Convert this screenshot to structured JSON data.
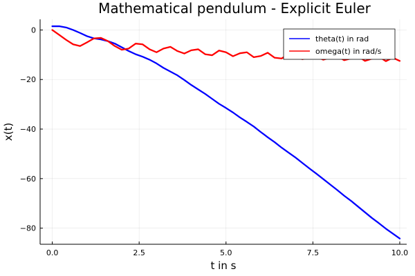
{
  "chart_data": {
    "type": "line",
    "title": "Mathematical pendulum - Explicit Euler",
    "xlabel": "t in s",
    "ylabel": "x(t)",
    "xlim": [
      -0.35,
      10.2
    ],
    "ylim": [
      -86.5,
      4.3
    ],
    "xticks": [
      0,
      2.5,
      5,
      7.5,
      10
    ],
    "xtick_labels": [
      "0.0",
      "2.5",
      "5.0",
      "7.5",
      "10.0"
    ],
    "yticks": [
      0,
      -20,
      -40,
      -60,
      -80
    ],
    "ytick_labels": [
      "0",
      "−20",
      "−40",
      "−60",
      "−80"
    ],
    "grid": true,
    "legend_position": "top-right",
    "series": [
      {
        "name": "theta(t) in rad",
        "color": "#0000ff",
        "x": [
          0.0,
          0.2,
          0.4,
          0.6,
          0.8,
          1.0,
          1.2,
          1.4,
          1.6,
          1.8,
          2.0,
          2.2,
          2.4,
          2.6,
          2.8,
          3.0,
          3.2,
          3.4,
          3.6,
          3.8,
          4.0,
          4.2,
          4.4,
          4.6,
          4.8,
          5.0,
          5.2,
          5.4,
          5.6,
          5.8,
          6.0,
          6.2,
          6.4,
          6.6,
          6.8,
          7.0,
          7.2,
          7.4,
          7.6,
          7.8,
          8.0,
          8.2,
          8.4,
          8.6,
          8.8,
          9.0,
          9.2,
          9.4,
          9.6,
          9.8,
          10.0
        ],
        "y": [
          1.5,
          1.5,
          1.0,
          0.0,
          -1.2,
          -2.5,
          -3.4,
          -3.8,
          -4.5,
          -5.5,
          -7.0,
          -8.5,
          -9.8,
          -10.8,
          -12.0,
          -13.5,
          -15.3,
          -16.8,
          -18.3,
          -20.2,
          -22.2,
          -24.0,
          -25.8,
          -27.8,
          -29.8,
          -31.5,
          -33.3,
          -35.3,
          -37.1,
          -39.0,
          -41.2,
          -43.3,
          -45.3,
          -47.5,
          -49.5,
          -51.5,
          -53.7,
          -55.9,
          -58.0,
          -60.2,
          -62.4,
          -64.6,
          -66.9,
          -69.0,
          -71.3,
          -73.6,
          -75.9,
          -78.0,
          -80.2,
          -82.2,
          -84.2
        ]
      },
      {
        "name": "omega(t) in rad/s",
        "color": "#ff0000",
        "x": [
          0.0,
          0.2,
          0.4,
          0.6,
          0.8,
          1.0,
          1.2,
          1.4,
          1.6,
          1.8,
          2.0,
          2.2,
          2.4,
          2.6,
          2.8,
          3.0,
          3.2,
          3.4,
          3.6,
          3.8,
          4.0,
          4.2,
          4.4,
          4.6,
          4.8,
          5.0,
          5.2,
          5.4,
          5.6,
          5.8,
          6.0,
          6.2,
          6.4,
          6.6,
          6.8,
          7.0,
          7.2,
          7.4,
          7.6,
          7.8,
          8.0,
          8.2,
          8.4,
          8.6,
          8.8,
          9.0,
          9.2,
          9.4,
          9.6,
          9.8,
          10.0
        ],
        "y": [
          0.0,
          -2.0,
          -4.0,
          -5.8,
          -6.5,
          -5.0,
          -3.4,
          -3.2,
          -4.5,
          -6.5,
          -8.0,
          -7.5,
          -5.5,
          -5.8,
          -7.8,
          -9.0,
          -7.5,
          -6.8,
          -8.5,
          -9.5,
          -8.2,
          -7.8,
          -9.8,
          -10.2,
          -8.3,
          -9.0,
          -10.6,
          -9.4,
          -9.0,
          -11.0,
          -10.5,
          -9.2,
          -11.2,
          -11.5,
          -9.8,
          -10.3,
          -11.8,
          -11.0,
          -10.8,
          -12.0,
          -11.2,
          -10.5,
          -12.2,
          -11.5,
          -10.6,
          -12.5,
          -11.6,
          -10.8,
          -12.6,
          -11.2,
          -12.5
        ]
      }
    ]
  }
}
